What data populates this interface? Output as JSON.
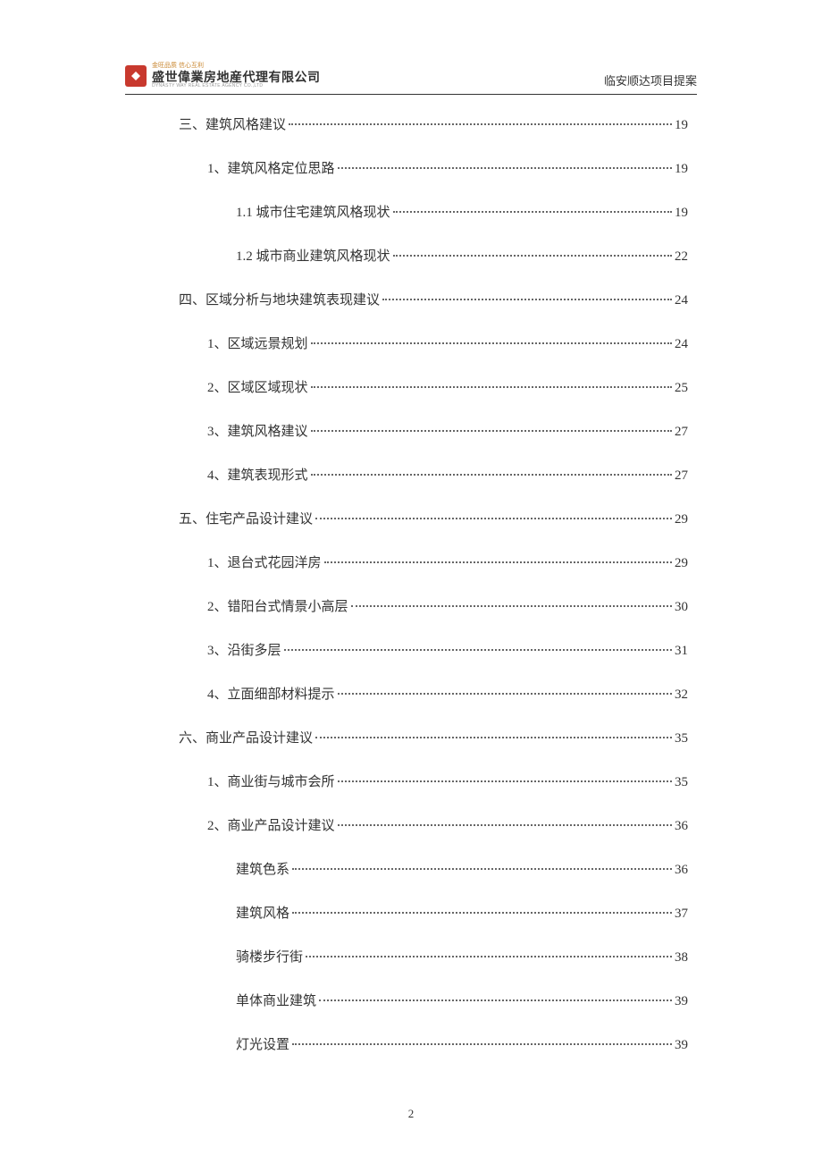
{
  "header": {
    "logo_tagline": "金旺品质 信心互利",
    "company_name": "盛世偉業房地産代理有限公司",
    "company_english": "DYNASTY WAY REAL ESTATE AGENCY CO.,LTD",
    "project_name": "临安顺达项目提案"
  },
  "toc_entries": [
    {
      "level": 1,
      "title": "三、建筑风格建议",
      "page": "19"
    },
    {
      "level": 2,
      "title": "1、建筑风格定位思路",
      "page": "19"
    },
    {
      "level": 3,
      "title": "1.1 城市住宅建筑风格现状",
      "page": "19"
    },
    {
      "level": 3,
      "title": "1.2 城市商业建筑风格现状",
      "page": "22"
    },
    {
      "level": 1,
      "title": "四、区域分析与地块建筑表现建议",
      "page": "24"
    },
    {
      "level": 2,
      "title": "1、区域远景规划",
      "page": "24"
    },
    {
      "level": 2,
      "title": "2、区域区域现状",
      "page": "25"
    },
    {
      "level": 2,
      "title": "3、建筑风格建议",
      "page": "27"
    },
    {
      "level": 2,
      "title": "4、建筑表现形式",
      "page": "27"
    },
    {
      "level": 1,
      "title": "五、住宅产品设计建议",
      "page": "29"
    },
    {
      "level": 2,
      "title": "1、退台式花园洋房",
      "page": "29"
    },
    {
      "level": 2,
      "title": "2、错阳台式情景小高层",
      "page": "30"
    },
    {
      "level": 2,
      "title": "3、沿街多层",
      "page": "31"
    },
    {
      "level": 2,
      "title": "4、立面细部材料提示",
      "page": "32"
    },
    {
      "level": 1,
      "title": "六、商业产品设计建议",
      "page": "35"
    },
    {
      "level": 2,
      "title": "1、商业街与城市会所",
      "page": "35"
    },
    {
      "level": 2,
      "title": "2、商业产品设计建议",
      "page": "36"
    },
    {
      "level": 3,
      "title": "建筑色系",
      "page": "36"
    },
    {
      "level": 3,
      "title": "建筑风格",
      "page": "37"
    },
    {
      "level": 3,
      "title": "骑楼步行街",
      "page": "38"
    },
    {
      "level": 3,
      "title": "单体商业建筑",
      "page": "39"
    },
    {
      "level": 3,
      "title": "灯光设置",
      "page": "39"
    }
  ],
  "page_number": "2",
  "colors": {
    "logo_bg": "#c8392e",
    "logo_tagline": "#c8862e",
    "text": "#333333",
    "border": "#333333",
    "dots": "#666666",
    "background": "#ffffff"
  }
}
